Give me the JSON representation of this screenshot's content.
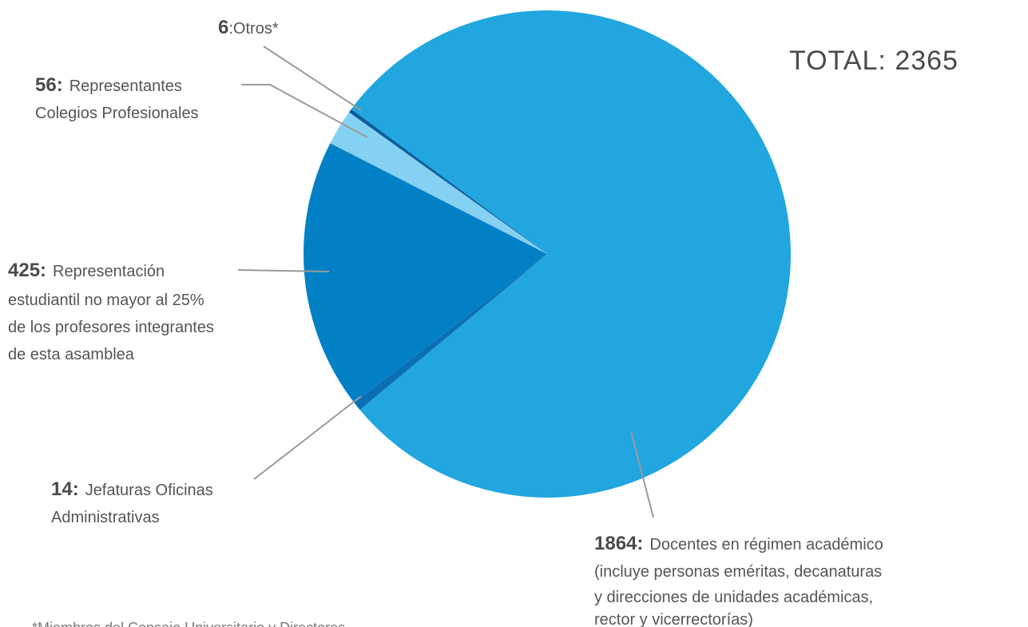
{
  "chart_data": {
    "type": "pie",
    "total_label": "TOTAL: 2365",
    "slices": [
      {
        "label": "Docentes en régimen académico (incluye personas eméritas, decanaturas y direcciones de unidades académicas, rector y vicerrectorías)",
        "value": 1864,
        "color": "#21a6df"
      },
      {
        "label": "Jefaturas Oficinas Administrativas",
        "value": 14,
        "color": "#0a6fb4"
      },
      {
        "label": "Representación estudiantil no mayor al 25% de los profesores integrantes de esta asamblea",
        "value": 425,
        "color": "#0280c6"
      },
      {
        "label": "Representantes Colegios Profesionales",
        "value": 56,
        "color": "#84d1f3"
      },
      {
        "label": "Otros*",
        "value": 6,
        "color": "#0a5e9c"
      }
    ]
  },
  "labels": {
    "otros": {
      "value": "6",
      "lines": [
        ":Otros*"
      ]
    },
    "colegios": {
      "value": "56:",
      "lines": [
        "Representantes",
        "Colegios Profesionales"
      ]
    },
    "estudiantil": {
      "value": "425:",
      "lines": [
        "Representación",
        "estudiantil no mayor al 25%",
        "de los profesores integrantes",
        "de esta asamblea"
      ]
    },
    "jefaturas": {
      "value": "14:",
      "lines": [
        "Jefaturas Oficinas",
        "Administrativas"
      ]
    },
    "docentes": {
      "value": "1864:",
      "lines": [
        "Docentes en régimen académico",
        "(incluye personas eméritas, decanaturas",
        "y direcciones de unidades académicas,",
        "rector y vicerrectorías)"
      ]
    }
  },
  "footnote": "*Miembros del Consejo Universitario y Directores"
}
